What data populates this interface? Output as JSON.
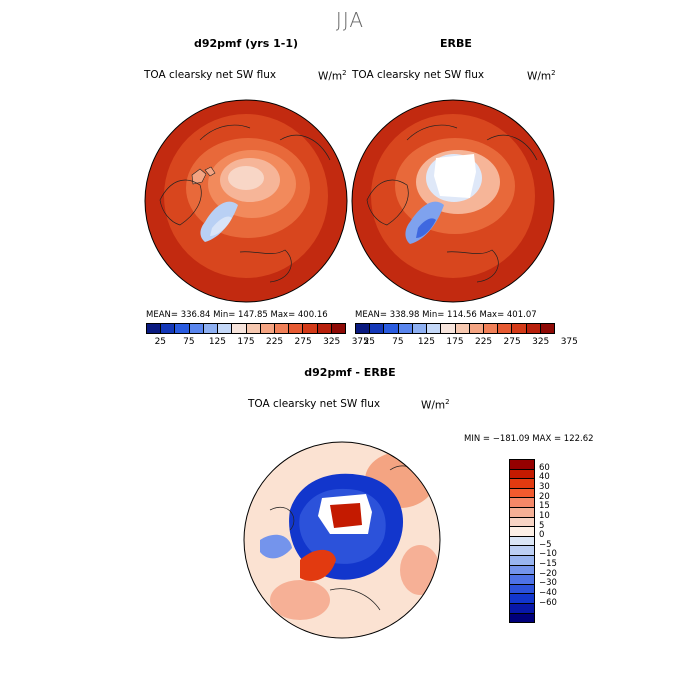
{
  "figure": {
    "title": "JJA"
  },
  "panels": [
    {
      "title": "d92pmf (yrs 1-1)",
      "subtitle": "TOA clearsky net SW flux",
      "stats": "MEAN= 336.84   Min= 147.85   Max= 400.16"
    },
    {
      "title": "ERBE",
      "subtitle": "TOA clearsky net SW flux",
      "stats": "MEAN= 338.98   Min= 114.56   Max= 401.07"
    },
    {
      "title": "d92pmf - ERBE",
      "subtitle": "TOA clearsky net SW flux",
      "stats": "MIN = −181.09  MAX = 122.62"
    }
  ],
  "units": {
    "base": "W/m",
    "exp": "2"
  },
  "top_colorbar": {
    "colors": [
      "#0a1a80",
      "#1438b8",
      "#2a5ce0",
      "#5a86ee",
      "#8eb0f2",
      "#c4d8f8",
      "#f6e4dc",
      "#f6c8b0",
      "#f4a482",
      "#f08058",
      "#e65a32",
      "#d33a18",
      "#b8200c",
      "#8e0a06"
    ],
    "ticks": [
      "25",
      "75",
      "125",
      "175",
      "225",
      "275",
      "325",
      "375"
    ]
  },
  "diff_colorbar": {
    "colors": [
      "#950000",
      "#c41a00",
      "#e23a10",
      "#f25a2e",
      "#f58868",
      "#f6b096",
      "#f8d4c4",
      "#fdf0e6",
      "#dbe6f6",
      "#bccff4",
      "#98b4f0",
      "#7494ec",
      "#4e72e6",
      "#2c52da",
      "#1236cc",
      "#0818a8",
      "#00007a"
    ],
    "ticks": [
      "60",
      "40",
      "30",
      "20",
      "15",
      "10",
      "5",
      "0",
      "−5",
      "−10",
      "−15",
      "−20",
      "−30",
      "−40",
      "−60"
    ]
  },
  "chart_data": [
    {
      "type": "heatmap",
      "title": "d92pmf (yrs 1-1)",
      "variable": "TOA clearsky net SW flux",
      "units": "W/m2",
      "projection": "north polar stereographic",
      "mean": 336.84,
      "min": 147.85,
      "max": 400.16,
      "levels": [
        25,
        50,
        75,
        100,
        125,
        150,
        175,
        200,
        225,
        250,
        275,
        300,
        325,
        350,
        375
      ]
    },
    {
      "type": "heatmap",
      "title": "ERBE",
      "variable": "TOA clearsky net SW flux",
      "units": "W/m2",
      "projection": "north polar stereographic",
      "mean": 338.98,
      "min": 114.56,
      "max": 401.07,
      "levels": [
        25,
        50,
        75,
        100,
        125,
        150,
        175,
        200,
        225,
        250,
        275,
        300,
        325,
        350,
        375
      ]
    },
    {
      "type": "heatmap",
      "title": "d92pmf - ERBE",
      "variable": "TOA clearsky net SW flux",
      "units": "W/m2",
      "projection": "north polar stereographic",
      "min": -181.09,
      "max": 122.62,
      "levels": [
        -60,
        -40,
        -30,
        -20,
        -15,
        -10,
        -5,
        0,
        5,
        10,
        15,
        20,
        30,
        40,
        60
      ]
    }
  ]
}
